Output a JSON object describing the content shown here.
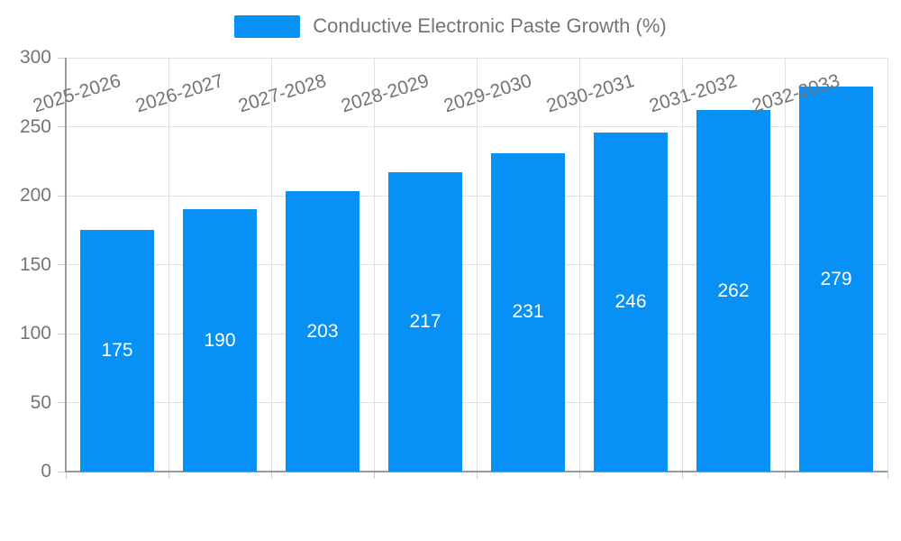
{
  "chart_data": {
    "type": "bar",
    "title": "Conductive Electronic Paste Growth (%)",
    "categories": [
      "2025-2026",
      "2026-2027",
      "2027-2028",
      "2028-2029",
      "2029-2030",
      "2030-2031",
      "2031-2032",
      "2032-2033"
    ],
    "values": [
      175,
      190,
      203,
      217,
      231,
      246,
      262,
      279
    ],
    "xlabel": "",
    "ylabel": "",
    "ylim": [
      0,
      300
    ],
    "yticks": [
      0,
      50,
      100,
      150,
      200,
      250,
      300
    ],
    "grid": true,
    "legend_position": "top",
    "bar_color": "#0891f5",
    "bar_label_color": "#ffffff",
    "grid_color": "#e0e0e0",
    "axis_color": "#999999",
    "tick_color": "#cccccc",
    "text_color": "#757575",
    "background_color": "#ffffff"
  }
}
